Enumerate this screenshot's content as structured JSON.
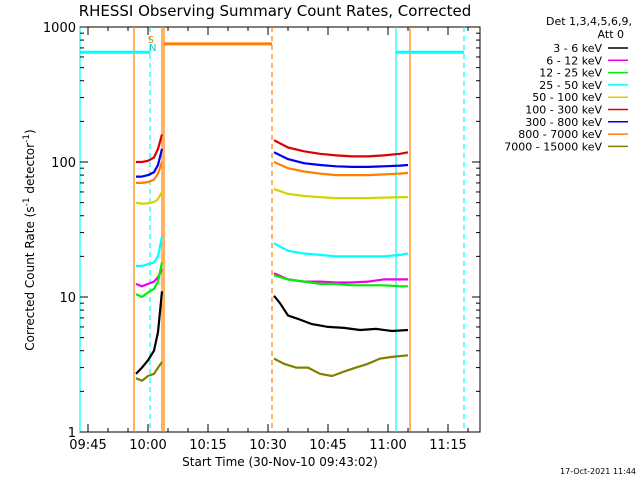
{
  "chart_data": {
    "type": "line",
    "title": "RHESSI Observing Summary Count Rates, Corrected",
    "xlabel": "Start Time (30-Nov-10 09:43:02)",
    "ylabel_main": "Corrected Count Rate (s",
    "ylabel_sup1": "-1",
    "ylabel_mid": " detector",
    "ylabel_sup2": "-1",
    "ylabel_end": ")",
    "y_scale": "log",
    "ylim": [
      1,
      1000
    ],
    "xlim_minutes": [
      0,
      100
    ],
    "x_ticks": [
      {
        "label": "09:45",
        "minute": 2
      },
      {
        "label": "10:00",
        "minute": 17
      },
      {
        "label": "10:15",
        "minute": 32
      },
      {
        "label": "10:30",
        "minute": 47
      },
      {
        "label": "10:45",
        "minute": 62
      },
      {
        "label": "11:00",
        "minute": 77
      },
      {
        "label": "11:15",
        "minute": 92
      }
    ],
    "y_ticks": [
      {
        "label": "1",
        "value": 1
      },
      {
        "label": "10",
        "value": 10
      },
      {
        "label": "100",
        "value": 100
      },
      {
        "label": "1000",
        "value": 1000
      }
    ],
    "legend_header": [
      "Det 1,3,4,5,6,9,",
      "Att 0"
    ],
    "series": [
      {
        "name": "3 - 6 keV",
        "color": "#000000",
        "x": [
          14.0,
          15.5,
          17.0,
          18.5,
          19.5,
          20.5,
          48.5,
          50.0,
          52.0,
          55.0,
          58.0,
          62.0,
          66.0,
          70.0,
          74.0,
          78.0,
          82.0
        ],
        "y": [
          2.7,
          3.0,
          3.4,
          4.0,
          5.5,
          11.0,
          10.2,
          9.0,
          7.3,
          6.8,
          6.3,
          6.0,
          5.9,
          5.7,
          5.8,
          5.6,
          5.7
        ]
      },
      {
        "name": "6 - 12 keV",
        "color": "#ee00ee",
        "x": [
          14.0,
          15.5,
          17.0,
          18.5,
          19.5,
          20.5,
          48.5,
          52.0,
          56.0,
          60.0,
          64.0,
          68.0,
          72.0,
          76.0,
          80.0,
          82.0
        ],
        "y": [
          12.5,
          12.0,
          12.5,
          13.0,
          14.0,
          16.0,
          15.0,
          13.5,
          13.0,
          13.0,
          12.8,
          12.8,
          13.0,
          13.5,
          13.5,
          13.5
        ]
      },
      {
        "name": "12 - 25 keV",
        "color": "#00ee00",
        "x": [
          14.0,
          15.5,
          17.0,
          18.5,
          19.5,
          20.5,
          48.5,
          52.0,
          56.0,
          60.0,
          64.0,
          68.0,
          72.0,
          76.0,
          80.0,
          82.0
        ],
        "y": [
          10.5,
          10.0,
          10.8,
          11.5,
          13.0,
          18.0,
          14.5,
          13.5,
          13.0,
          12.5,
          12.5,
          12.2,
          12.2,
          12.2,
          12.0,
          12.0
        ]
      },
      {
        "name": "25 - 50 keV",
        "color": "#00ffff",
        "x": [
          14.0,
          15.5,
          17.0,
          18.5,
          19.5,
          20.5,
          48.5,
          52.0,
          56.0,
          60.0,
          64.0,
          68.0,
          72.0,
          76.0,
          80.0,
          82.0
        ],
        "y": [
          17.0,
          17.0,
          17.5,
          18.0,
          20.0,
          28.0,
          25.0,
          22.0,
          21.0,
          20.5,
          20.0,
          20.0,
          20.0,
          20.0,
          20.5,
          21.0
        ]
      },
      {
        "name": "50 - 100 keV",
        "color": "#d4d400",
        "x": [
          14.0,
          15.5,
          17.0,
          18.5,
          19.5,
          20.5,
          48.5,
          52.0,
          56.0,
          60.0,
          64.0,
          68.0,
          72.0,
          76.0,
          80.0,
          82.0
        ],
        "y": [
          50.0,
          49.0,
          49.5,
          50.5,
          53.0,
          60.0,
          63.0,
          58.0,
          56.0,
          55.0,
          54.0,
          54.0,
          54.0,
          54.5,
          55.0,
          55.0
        ]
      },
      {
        "name": "100 - 300 keV",
        "color": "#dd0000",
        "x": [
          14.0,
          15.5,
          17.0,
          18.5,
          19.5,
          20.5,
          48.5,
          52.0,
          56.0,
          60.0,
          64.0,
          68.0,
          72.0,
          76.0,
          80.0,
          82.0
        ],
        "y": [
          100.0,
          100.0,
          102.0,
          108.0,
          125.0,
          160.0,
          145.0,
          128.0,
          120.0,
          115.0,
          112.0,
          110.0,
          110.0,
          112.0,
          115.0,
          118.0
        ]
      },
      {
        "name": "300 - 800 keV",
        "color": "#0000ee",
        "x": [
          14.0,
          15.5,
          17.0,
          18.5,
          19.5,
          20.5,
          48.5,
          52.0,
          56.0,
          60.0,
          64.0,
          68.0,
          72.0,
          76.0,
          80.0,
          82.0
        ],
        "y": [
          78.0,
          78.0,
          80.0,
          84.0,
          95.0,
          125.0,
          118.0,
          105.0,
          98.0,
          95.0,
          93.0,
          92.0,
          92.0,
          93.0,
          94.0,
          95.0
        ]
      },
      {
        "name": "800 - 7000 keV",
        "color": "#ff7f00",
        "x": [
          14.0,
          15.5,
          17.0,
          18.5,
          19.5,
          20.5,
          48.5,
          52.0,
          56.0,
          60.0,
          64.0,
          68.0,
          72.0,
          76.0,
          80.0,
          82.0
        ],
        "y": [
          70.0,
          70.0,
          71.0,
          74.0,
          82.0,
          100.0,
          100.0,
          90.0,
          85.0,
          82.0,
          80.0,
          80.0,
          80.0,
          81.0,
          82.0,
          83.0
        ]
      },
      {
        "name": "7000 - 15000 keV",
        "color": "#808000",
        "x": [
          14.0,
          15.5,
          17.0,
          18.5,
          19.5,
          20.5,
          48.5,
          51.0,
          54.0,
          57.0,
          60.0,
          63.0,
          66.0,
          69.0,
          72.0,
          75.0,
          78.0,
          82.0
        ],
        "y": [
          2.5,
          2.4,
          2.6,
          2.7,
          3.0,
          3.3,
          3.5,
          3.2,
          3.0,
          3.0,
          2.7,
          2.6,
          2.8,
          3.0,
          3.2,
          3.5,
          3.6,
          3.7
        ]
      }
    ],
    "saa_flag": {
      "label": "S",
      "color": "#ff7f00",
      "x": 17.7
    },
    "night_flag": {
      "label": "N",
      "color": "#00cccc",
      "x": 18.2
    },
    "bands": [
      {
        "x_start": 0.0,
        "x_end": 17.5,
        "y": 650,
        "color": "#00ffff"
      },
      {
        "x_start": 21.0,
        "x_end": 48.0,
        "y": 750,
        "color": "#ff7f00"
      },
      {
        "x_start": 79.0,
        "x_end": 96.0,
        "y": 650,
        "color": "#00ffff"
      }
    ],
    "markers": [
      {
        "x": 0.0,
        "style": "solid",
        "color": "#00ffff"
      },
      {
        "x": 17.5,
        "style": "dashed",
        "color": "#00ffff"
      },
      {
        "x": 13.5,
        "style": "solid",
        "color": "#ff7f00"
      },
      {
        "x": 20.5,
        "style": "solid",
        "color": "#ff7f00"
      },
      {
        "x": 21.0,
        "style": "solid",
        "color": "#ff7f00"
      },
      {
        "x": 48.0,
        "style": "dashed",
        "color": "#ff7f00"
      },
      {
        "x": 79.0,
        "style": "solid",
        "color": "#00ffff"
      },
      {
        "x": 82.5,
        "style": "solid",
        "color": "#ff7f00"
      },
      {
        "x": 96.0,
        "style": "dashed",
        "color": "#00ffff"
      }
    ],
    "date_stamp": "17-Oct-2021 11:44",
    "grid": false,
    "legend_position": "top-right"
  }
}
